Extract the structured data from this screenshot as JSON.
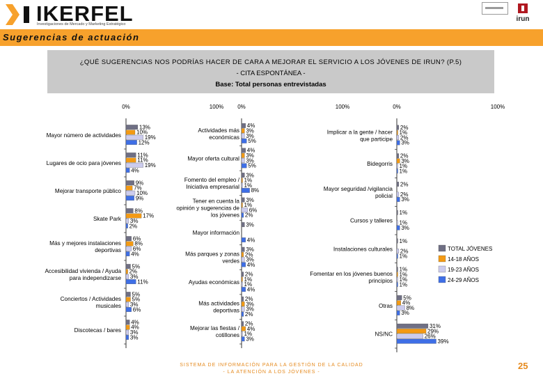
{
  "header": {
    "logo_text": "IKERFEL",
    "logo_subtitle": "Investigaciones de Mercado y Marketing Estratégico",
    "section_title": "Sugerencias de actuación",
    "municipality": "irun"
  },
  "footer": {
    "line1": "SISTEMA DE INFORMACIÓN PARA LA GESTIÓN DE LA CALIDAD",
    "line2": "- LA ATENCIÓN A LOS JÓVENES -",
    "page_number": "25"
  },
  "colors": {
    "total": "#6f6f84",
    "age_14_18": "#f39a14",
    "age_19_23": "#ccccee",
    "age_24_29": "#3f6fe6",
    "accent": "#f7a12c",
    "title_bg": "#c9c9c9"
  },
  "chart_data": {
    "type": "bar",
    "orientation": "horizontal",
    "title": "¿QUÉ SUGERENCIAS NOS PODRÍAS HACER DE CARA A MEJORAR EL SERVICIO A LOS JÓVENES DE IRUN? (P.5)",
    "subtitle": "- CITA ESPONTÁNEA -",
    "base": "Base: Total personas entrevistadas",
    "xlim": [
      0,
      100
    ],
    "axis_ticks": [
      "0%",
      "100%"
    ],
    "legend": [
      "TOTAL JÓVENES",
      "14-18 AÑOS",
      "19-23 AÑOS",
      "24-29 AÑOS"
    ],
    "panels": [
      {
        "categories": [
          {
            "label": "Mayor número de actividades",
            "values": [
              13,
              10,
              19,
              12
            ],
            "texts": [
              "13%",
              "10%",
              "19%",
              "12%"
            ]
          },
          {
            "label": "Lugares de ocio para jóvenes",
            "values": [
              11,
              11,
              19,
              4
            ],
            "texts": [
              "11%",
              "11%",
              "19%",
              "4%"
            ]
          },
          {
            "label": "Mejorar transporte público",
            "values": [
              9,
              7,
              10,
              9
            ],
            "texts": [
              "9%",
              "7%",
              "10%",
              "9%"
            ]
          },
          {
            "label": "Skate Park",
            "values": [
              8,
              17,
              3,
              2
            ],
            "texts": [
              "8%",
              "17%",
              "3%",
              "2%"
            ]
          },
          {
            "label": "Más y mejores instalaciones deportivas",
            "values": [
              6,
              8,
              6,
              4
            ],
            "texts": [
              "6%",
              "8%",
              "6%",
              "4%"
            ]
          },
          {
            "label": "Accesibilidad vivienda / Ayuda para independizarse",
            "values": [
              5,
              2,
              3,
              11
            ],
            "texts": [
              "5%",
              "2%",
              "3%",
              "11%"
            ]
          },
          {
            "label": "Conciertos / Actividades musicales",
            "values": [
              5,
              5,
              3,
              6
            ],
            "texts": [
              "5%",
              "5%",
              "3%",
              "6%"
            ]
          },
          {
            "label": "Discotecas / bares",
            "values": [
              4,
              4,
              3,
              3
            ],
            "texts": [
              "4%",
              "4%",
              "3%",
              "3%"
            ]
          }
        ]
      },
      {
        "categories": [
          {
            "label": "Actividades más económicas",
            "values": [
              4,
              3,
              3,
              5
            ],
            "texts": [
              "4%",
              "3%",
              "3%",
              "5%"
            ]
          },
          {
            "label": "Mayor oferta cultural",
            "values": [
              4,
              3,
              3,
              5
            ],
            "texts": [
              "4%",
              "3%",
              "3%",
              "5%"
            ]
          },
          {
            "label": "Fomento del empleo / Iniciativa empresarial",
            "values": [
              3,
              1,
              1,
              8
            ],
            "texts": [
              "3%",
              "1%",
              "1%",
              "8%"
            ]
          },
          {
            "label": "Tener en cuenta la opinión y sugerencias de los jóvenes",
            "values": [
              3,
              1,
              6,
              2
            ],
            "texts": [
              "3%",
              "1%",
              "6%",
              "2%"
            ]
          },
          {
            "label": "Mayor información",
            "values": [
              3,
              0,
              0,
              4
            ],
            "texts": [
              "3%",
              "",
              "",
              "4%"
            ]
          },
          {
            "label": "Más parques y zonas verdes",
            "values": [
              3,
              2,
              3,
              4
            ],
            "texts": [
              "3%",
              "2%",
              "3%",
              "4%"
            ]
          },
          {
            "label": "Ayudas económicas",
            "values": [
              2,
              1,
              1,
              4
            ],
            "texts": [
              "2%",
              "1%",
              "1%",
              "4%"
            ]
          },
          {
            "label": "Más actividades deportivas",
            "values": [
              2,
              3,
              3,
              2
            ],
            "texts": [
              "2%",
              "3%",
              "3%",
              "2%"
            ]
          },
          {
            "label": "Mejorar las fiestas / cotillones",
            "values": [
              2,
              4,
              1,
              3
            ],
            "texts": [
              "2%",
              "4%",
              "1%",
              "3%"
            ]
          }
        ]
      },
      {
        "categories": [
          {
            "label": "Implicar a la gente / hacer que participe",
            "values": [
              2,
              1,
              2,
              3
            ],
            "texts": [
              "2%",
              "1%",
              "2%",
              "3%"
            ]
          },
          {
            "label": "Bidegorris",
            "values": [
              2,
              3,
              1,
              1
            ],
            "texts": [
              "2%",
              "3%",
              "1%",
              "1%"
            ]
          },
          {
            "label": "Mayor seguridad /vigilancia policial",
            "values": [
              2,
              0,
              2,
              3
            ],
            "texts": [
              "2%",
              "",
              "2%",
              "3%"
            ]
          },
          {
            "label": "Cursos y talleres",
            "values": [
              1,
              0,
              1,
              3
            ],
            "texts": [
              "1%",
              "",
              "1%",
              "3%"
            ]
          },
          {
            "label": "Instalaciones culturales",
            "values": [
              1,
              0,
              2,
              1
            ],
            "texts": [
              "1%",
              "",
              "2%",
              "1%"
            ]
          },
          {
            "label": "Fomentar en los jóvenes buenos principios",
            "values": [
              1,
              1,
              1,
              1
            ],
            "texts": [
              "1%",
              "1%",
              "1%",
              "1%"
            ]
          },
          {
            "label": "Otras",
            "values": [
              5,
              4,
              8,
              3
            ],
            "texts": [
              "5%",
              "4%",
              "8%",
              "3%"
            ]
          },
          {
            "label": "NS/NC",
            "values": [
              31,
              29,
              26,
              39
            ],
            "texts": [
              "31%",
              "29%",
              "26%",
              "39%"
            ]
          }
        ]
      }
    ]
  }
}
